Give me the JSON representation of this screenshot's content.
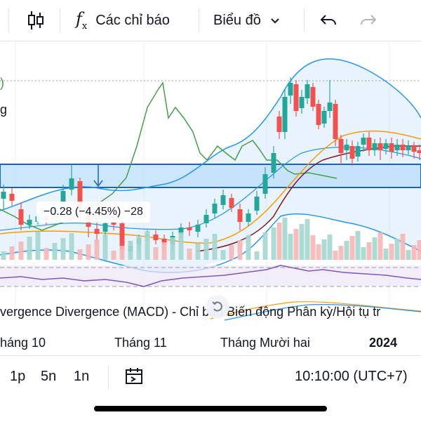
{
  "toolbar": {
    "indicators_label": "Các chỉ báo",
    "chart_type_label": "Biểu đồ",
    "icons": [
      "candles-icon",
      "fx-icon",
      "chevron-down-icon",
      "undo-icon",
      "redo-icon"
    ]
  },
  "chart": {
    "price_label": "−0.28 (−4.45%) −28",
    "legend_fragment_1": ")",
    "legend_fragment_2": "g",
    "macd_title": "vergence Divergence (MACD) - Chỉ báo Biến động Phân kỳ/Hội tụ tr",
    "colors": {
      "up": "#26a69a",
      "down": "#ef5350",
      "bollinger": "#2196f3",
      "ema_orange": "#ff9800",
      "ema_dark": "#801922",
      "green_line": "#43a047",
      "band_fill": "#bbdefb",
      "rsi": "#7e57c2"
    }
  },
  "time_axis": {
    "labels": [
      "háng 10",
      "Tháng 11",
      "Tháng Mười hai",
      "2024"
    ]
  },
  "bottom_bar": {
    "interval_1": "1p",
    "interval_2": "5n",
    "interval_3": "1n",
    "clock": "10:10:00 (UTC+7)"
  }
}
